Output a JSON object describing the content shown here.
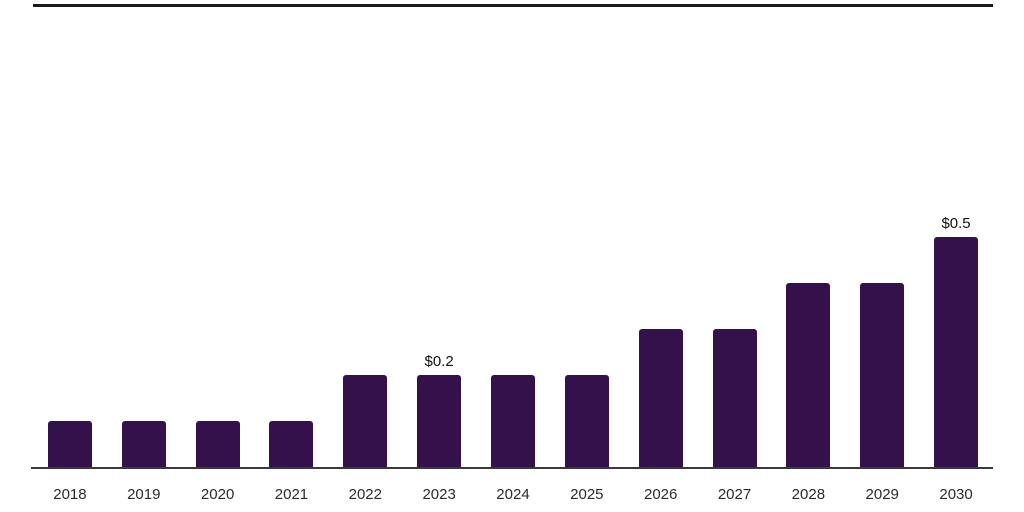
{
  "page": {
    "background_color": "#ffffff"
  },
  "chart_data": {
    "type": "bar",
    "title": "",
    "xlabel": "",
    "ylabel": "",
    "categories": [
      "2018",
      "2019",
      "2020",
      "2021",
      "2022",
      "2023",
      "2024",
      "2025",
      "2026",
      "2027",
      "2028",
      "2029",
      "2030"
    ],
    "values": [
      0.1,
      0.1,
      0.1,
      0.1,
      0.2,
      0.2,
      0.2,
      0.2,
      0.3,
      0.3,
      0.4,
      0.4,
      0.5
    ],
    "data_labels": {
      "2023": "$0.2",
      "2030": "$0.5"
    },
    "ylim": [
      0,
      0.55
    ],
    "gridlines": false,
    "legend_position": "none",
    "bar_color": "#35114C",
    "axis_line_color": "#3a3a3a",
    "top_border_color": "#1a1a1a",
    "data_label_color": "#111111",
    "tick_label_color": "#2b2b2b"
  }
}
